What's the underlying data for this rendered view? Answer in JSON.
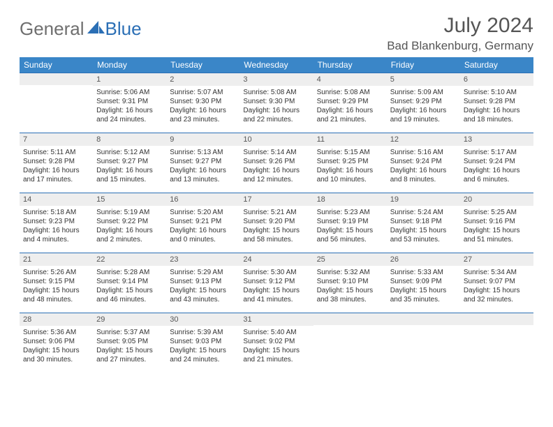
{
  "brand": {
    "word1": "General",
    "word2": "Blue"
  },
  "colors": {
    "header_bg": "#3a86c8",
    "header_text": "#ffffff",
    "rule": "#2b6fb5",
    "daynum_bg": "#eeeeee",
    "text": "#333333",
    "muted": "#555555",
    "logo_gray": "#6f6f6f"
  },
  "title": "July 2024",
  "location": "Bad Blankenburg, Germany",
  "weekdays": [
    "Sunday",
    "Monday",
    "Tuesday",
    "Wednesday",
    "Thursday",
    "Friday",
    "Saturday"
  ],
  "layout": {
    "first_weekday_index": 1,
    "days_in_month": 31
  },
  "days": {
    "1": {
      "sunrise": "Sunrise: 5:06 AM",
      "sunset": "Sunset: 9:31 PM",
      "daylight": "Daylight: 16 hours and 24 minutes."
    },
    "2": {
      "sunrise": "Sunrise: 5:07 AM",
      "sunset": "Sunset: 9:30 PM",
      "daylight": "Daylight: 16 hours and 23 minutes."
    },
    "3": {
      "sunrise": "Sunrise: 5:08 AM",
      "sunset": "Sunset: 9:30 PM",
      "daylight": "Daylight: 16 hours and 22 minutes."
    },
    "4": {
      "sunrise": "Sunrise: 5:08 AM",
      "sunset": "Sunset: 9:29 PM",
      "daylight": "Daylight: 16 hours and 21 minutes."
    },
    "5": {
      "sunrise": "Sunrise: 5:09 AM",
      "sunset": "Sunset: 9:29 PM",
      "daylight": "Daylight: 16 hours and 19 minutes."
    },
    "6": {
      "sunrise": "Sunrise: 5:10 AM",
      "sunset": "Sunset: 9:28 PM",
      "daylight": "Daylight: 16 hours and 18 minutes."
    },
    "7": {
      "sunrise": "Sunrise: 5:11 AM",
      "sunset": "Sunset: 9:28 PM",
      "daylight": "Daylight: 16 hours and 17 minutes."
    },
    "8": {
      "sunrise": "Sunrise: 5:12 AM",
      "sunset": "Sunset: 9:27 PM",
      "daylight": "Daylight: 16 hours and 15 minutes."
    },
    "9": {
      "sunrise": "Sunrise: 5:13 AM",
      "sunset": "Sunset: 9:27 PM",
      "daylight": "Daylight: 16 hours and 13 minutes."
    },
    "10": {
      "sunrise": "Sunrise: 5:14 AM",
      "sunset": "Sunset: 9:26 PM",
      "daylight": "Daylight: 16 hours and 12 minutes."
    },
    "11": {
      "sunrise": "Sunrise: 5:15 AM",
      "sunset": "Sunset: 9:25 PM",
      "daylight": "Daylight: 16 hours and 10 minutes."
    },
    "12": {
      "sunrise": "Sunrise: 5:16 AM",
      "sunset": "Sunset: 9:24 PM",
      "daylight": "Daylight: 16 hours and 8 minutes."
    },
    "13": {
      "sunrise": "Sunrise: 5:17 AM",
      "sunset": "Sunset: 9:24 PM",
      "daylight": "Daylight: 16 hours and 6 minutes."
    },
    "14": {
      "sunrise": "Sunrise: 5:18 AM",
      "sunset": "Sunset: 9:23 PM",
      "daylight": "Daylight: 16 hours and 4 minutes."
    },
    "15": {
      "sunrise": "Sunrise: 5:19 AM",
      "sunset": "Sunset: 9:22 PM",
      "daylight": "Daylight: 16 hours and 2 minutes."
    },
    "16": {
      "sunrise": "Sunrise: 5:20 AM",
      "sunset": "Sunset: 9:21 PM",
      "daylight": "Daylight: 16 hours and 0 minutes."
    },
    "17": {
      "sunrise": "Sunrise: 5:21 AM",
      "sunset": "Sunset: 9:20 PM",
      "daylight": "Daylight: 15 hours and 58 minutes."
    },
    "18": {
      "sunrise": "Sunrise: 5:23 AM",
      "sunset": "Sunset: 9:19 PM",
      "daylight": "Daylight: 15 hours and 56 minutes."
    },
    "19": {
      "sunrise": "Sunrise: 5:24 AM",
      "sunset": "Sunset: 9:18 PM",
      "daylight": "Daylight: 15 hours and 53 minutes."
    },
    "20": {
      "sunrise": "Sunrise: 5:25 AM",
      "sunset": "Sunset: 9:16 PM",
      "daylight": "Daylight: 15 hours and 51 minutes."
    },
    "21": {
      "sunrise": "Sunrise: 5:26 AM",
      "sunset": "Sunset: 9:15 PM",
      "daylight": "Daylight: 15 hours and 48 minutes."
    },
    "22": {
      "sunrise": "Sunrise: 5:28 AM",
      "sunset": "Sunset: 9:14 PM",
      "daylight": "Daylight: 15 hours and 46 minutes."
    },
    "23": {
      "sunrise": "Sunrise: 5:29 AM",
      "sunset": "Sunset: 9:13 PM",
      "daylight": "Daylight: 15 hours and 43 minutes."
    },
    "24": {
      "sunrise": "Sunrise: 5:30 AM",
      "sunset": "Sunset: 9:12 PM",
      "daylight": "Daylight: 15 hours and 41 minutes."
    },
    "25": {
      "sunrise": "Sunrise: 5:32 AM",
      "sunset": "Sunset: 9:10 PM",
      "daylight": "Daylight: 15 hours and 38 minutes."
    },
    "26": {
      "sunrise": "Sunrise: 5:33 AM",
      "sunset": "Sunset: 9:09 PM",
      "daylight": "Daylight: 15 hours and 35 minutes."
    },
    "27": {
      "sunrise": "Sunrise: 5:34 AM",
      "sunset": "Sunset: 9:07 PM",
      "daylight": "Daylight: 15 hours and 32 minutes."
    },
    "28": {
      "sunrise": "Sunrise: 5:36 AM",
      "sunset": "Sunset: 9:06 PM",
      "daylight": "Daylight: 15 hours and 30 minutes."
    },
    "29": {
      "sunrise": "Sunrise: 5:37 AM",
      "sunset": "Sunset: 9:05 PM",
      "daylight": "Daylight: 15 hours and 27 minutes."
    },
    "30": {
      "sunrise": "Sunrise: 5:39 AM",
      "sunset": "Sunset: 9:03 PM",
      "daylight": "Daylight: 15 hours and 24 minutes."
    },
    "31": {
      "sunrise": "Sunrise: 5:40 AM",
      "sunset": "Sunset: 9:02 PM",
      "daylight": "Daylight: 15 hours and 21 minutes."
    }
  }
}
